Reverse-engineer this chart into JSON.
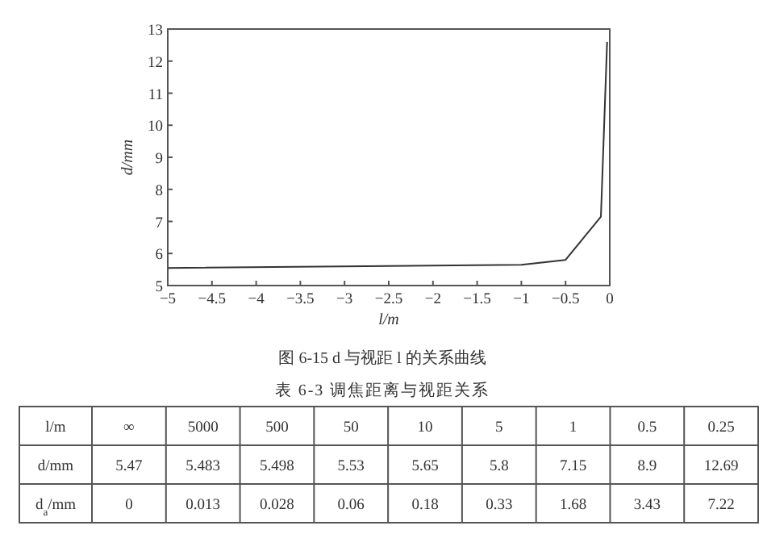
{
  "chart_data": [
    {
      "type": "line",
      "title": "图 6-15   d 与视距 l 的关系曲线",
      "xlabel": "l/m",
      "ylabel": "d/mm",
      "x": [
        -5,
        -1,
        -0.5,
        -0.1,
        -0.03
      ],
      "series": [
        {
          "color": "#333333",
          "values": [
            5.55,
            5.65,
            5.8,
            7.15,
            12.6
          ]
        }
      ],
      "xlim": [
        -5,
        0
      ],
      "ylim": [
        5,
        13
      ],
      "xticks": [
        -5,
        -4.5,
        -4,
        -3.5,
        -3,
        -2.5,
        -2,
        -1.5,
        -1,
        -0.5,
        0
      ],
      "yticks": [
        5,
        6,
        7,
        8,
        9,
        10,
        11,
        12,
        13
      ],
      "grid": false
    },
    {
      "type": "other",
      "title": "表 6-3   调焦距离与视距关系",
      "annotations": [
        "l/m",
        "∞",
        "5000",
        "500",
        "50",
        "10",
        "5",
        "1",
        "0.5",
        "0.25",
        "d/mm",
        "5.47",
        "5.483",
        "5.498",
        "5.53",
        "5.65",
        "5.8",
        "7.15",
        "8.9",
        "12.69",
        "d$_{a}$/mm",
        "0",
        "0.013",
        "0.028",
        "0.06",
        "0.18",
        "0.33",
        "1.68",
        "3.43",
        "7.22"
      ]
    }
  ]
}
